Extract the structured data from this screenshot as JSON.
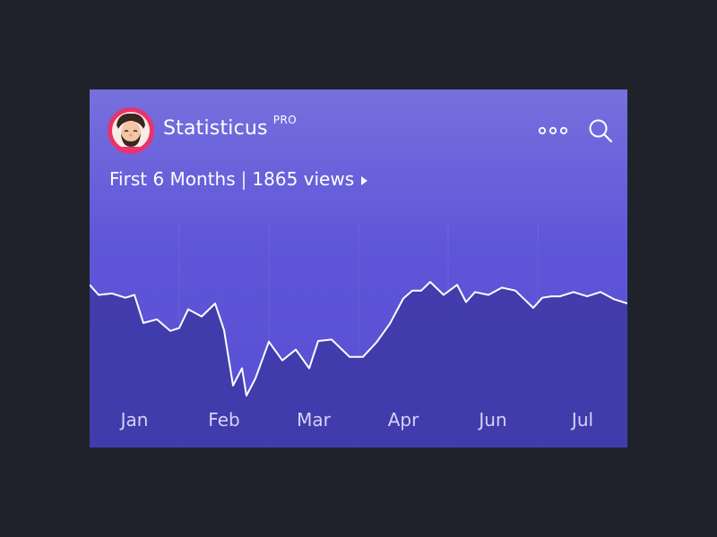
{
  "app": {
    "name": "Statisticus",
    "badge": "PRO"
  },
  "header": {
    "more_icon": "more-dots-icon",
    "search_icon": "search-icon"
  },
  "summary": {
    "period": "First 6 Months",
    "separator": "|",
    "views": "1865 views",
    "caret_icon": "caret-right-icon"
  },
  "colors": {
    "page_background": "#20222b",
    "card_gradient_top": "#7670de",
    "card_gradient_bottom": "#574fd2",
    "area_fill": "#3d38a4",
    "line": "#ffffff",
    "avatar_ring": "#e8336b"
  },
  "chart_data": {
    "type": "area",
    "categories": [
      "Jan",
      "Feb",
      "Mar",
      "Apr",
      "Jun",
      "Jul"
    ],
    "x": [
      0,
      0.1,
      0.25,
      0.4,
      0.5,
      0.6,
      0.75,
      0.9,
      1,
      1.1,
      1.25,
      1.4,
      1.5,
      1.6,
      1.7,
      1.75,
      1.85,
      2,
      2.15,
      2.3,
      2.45,
      2.55,
      2.7,
      2.9,
      3.05,
      3.2,
      3.35,
      3.5,
      3.6,
      3.7,
      3.8,
      3.95,
      4.1,
      4.2,
      4.3,
      4.45,
      4.6,
      4.75,
      4.85,
      4.95,
      5.05,
      5.15,
      5.25,
      5.4,
      5.55,
      5.7,
      5.85,
      6
    ],
    "values": [
      1130,
      1060,
      1070,
      1040,
      1060,
      865,
      890,
      810,
      830,
      960,
      910,
      1000,
      815,
      430,
      550,
      360,
      480,
      735,
      605,
      680,
      550,
      740,
      750,
      630,
      630,
      730,
      860,
      1035,
      1090,
      1090,
      1150,
      1060,
      1130,
      1010,
      1080,
      1060,
      1110,
      1090,
      1030,
      970,
      1040,
      1050,
      1050,
      1080,
      1050,
      1080,
      1030,
      1000
    ],
    "ylim": [
      0,
      1865
    ],
    "grid": "vertical month separators"
  }
}
